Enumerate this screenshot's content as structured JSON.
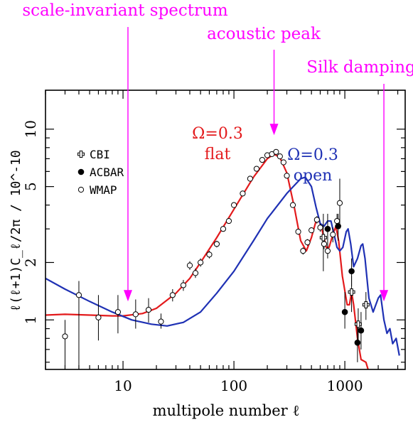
{
  "chart_data": {
    "type": "scatter",
    "title": "",
    "xlabel": "multipole number ℓ",
    "ylabel": "ℓ(ℓ+1)C_ℓ/2π  /  10^-10",
    "x_scale": "log",
    "y_scale": "log",
    "xlim": [
      2,
      3500
    ],
    "ylim": [
      0.55,
      16
    ],
    "x_ticks": [
      10,
      100,
      1000
    ],
    "x_tick_labels": [
      "10",
      "100",
      "1000"
    ],
    "y_ticks": [
      1,
      2,
      5,
      10
    ],
    "y_tick_labels": [
      "1",
      "2",
      "5",
      "10"
    ],
    "legend_position": "top-left",
    "legend": [
      {
        "marker": "cross",
        "label": "CBI"
      },
      {
        "marker": "filled-circle",
        "label": "ACBAR"
      },
      {
        "marker": "open-circle",
        "label": "WMAP"
      }
    ],
    "series": [
      {
        "name": "flat",
        "kind": "line",
        "color": "#e31a1c",
        "points": [
          [
            2,
            1.06
          ],
          [
            3,
            1.07
          ],
          [
            5,
            1.06
          ],
          [
            8,
            1.05
          ],
          [
            10,
            1.05
          ],
          [
            15,
            1.08
          ],
          [
            20,
            1.15
          ],
          [
            30,
            1.38
          ],
          [
            40,
            1.65
          ],
          [
            50,
            2.0
          ],
          [
            70,
            2.7
          ],
          [
            100,
            3.8
          ],
          [
            150,
            5.6
          ],
          [
            200,
            7.0
          ],
          [
            230,
            7.4
          ],
          [
            260,
            7.1
          ],
          [
            300,
            5.9
          ],
          [
            350,
            3.9
          ],
          [
            400,
            2.6
          ],
          [
            450,
            2.3
          ],
          [
            500,
            2.7
          ],
          [
            550,
            3.3
          ],
          [
            580,
            3.4
          ],
          [
            620,
            3.0
          ],
          [
            680,
            2.4
          ],
          [
            720,
            2.4
          ],
          [
            780,
            2.8
          ],
          [
            830,
            3.1
          ],
          [
            880,
            2.6
          ],
          [
            950,
            1.7
          ],
          [
            1050,
            1.2
          ],
          [
            1100,
            1.2
          ],
          [
            1150,
            1.4
          ],
          [
            1200,
            1.2
          ],
          [
            1300,
            0.8
          ],
          [
            1400,
            0.62
          ],
          [
            1550,
            0.6
          ],
          [
            1700,
            0.5
          ]
        ]
      },
      {
        "name": "open",
        "kind": "line",
        "color": "#1f31b4",
        "points": [
          [
            2,
            1.65
          ],
          [
            3,
            1.45
          ],
          [
            5,
            1.25
          ],
          [
            8,
            1.1
          ],
          [
            12,
            1.0
          ],
          [
            18,
            0.95
          ],
          [
            25,
            0.93
          ],
          [
            35,
            0.97
          ],
          [
            50,
            1.1
          ],
          [
            70,
            1.38
          ],
          [
            100,
            1.8
          ],
          [
            150,
            2.6
          ],
          [
            200,
            3.4
          ],
          [
            300,
            4.6
          ],
          [
            400,
            5.5
          ],
          [
            440,
            5.6
          ],
          [
            500,
            5.0
          ],
          [
            550,
            3.9
          ],
          [
            600,
            3.2
          ],
          [
            650,
            3.1
          ],
          [
            700,
            3.3
          ],
          [
            750,
            3.3
          ],
          [
            800,
            2.8
          ],
          [
            850,
            2.4
          ],
          [
            900,
            2.3
          ],
          [
            960,
            2.4
          ],
          [
            1030,
            2.9
          ],
          [
            1070,
            3.0
          ],
          [
            1130,
            2.5
          ],
          [
            1200,
            1.9
          ],
          [
            1300,
            2.1
          ],
          [
            1400,
            2.45
          ],
          [
            1450,
            2.5
          ],
          [
            1520,
            2.1
          ],
          [
            1650,
            1.3
          ],
          [
            1800,
            1.1
          ],
          [
            2000,
            1.3
          ],
          [
            2100,
            1.35
          ],
          [
            2250,
            1.0
          ],
          [
            2400,
            0.85
          ],
          [
            2550,
            0.9
          ],
          [
            2700,
            0.75
          ],
          [
            2900,
            0.8
          ],
          [
            3100,
            0.65
          ]
        ]
      },
      {
        "name": "WMAP",
        "kind": "points",
        "marker": "open-circle",
        "points": [
          [
            3,
            0.82,
            0.35,
            1.0
          ],
          [
            4,
            1.35,
            0.5,
            1.6
          ],
          [
            6,
            1.03,
            0.78,
            1.35
          ],
          [
            9,
            1.1,
            0.85,
            1.35
          ],
          [
            13,
            1.07,
            0.9,
            1.28
          ],
          [
            17,
            1.13,
            0.97,
            1.3
          ],
          [
            22,
            0.98,
            0.9,
            1.08
          ],
          [
            28,
            1.35,
            1.25,
            1.45
          ],
          [
            35,
            1.52,
            1.42,
            1.62
          ],
          [
            40,
            1.93,
            1.83,
            2.03
          ],
          [
            45,
            1.76,
            1.66,
            1.86
          ],
          [
            50,
            2.0,
            1.9,
            2.1
          ],
          [
            60,
            2.2,
            2.1,
            2.3
          ],
          [
            70,
            2.5,
            2.4,
            2.6
          ],
          [
            80,
            3.0,
            2.9,
            3.1
          ],
          [
            90,
            3.3,
            3.2,
            3.4
          ],
          [
            100,
            4.0,
            3.9,
            4.1
          ],
          [
            120,
            4.6,
            4.5,
            4.7
          ],
          [
            140,
            5.5,
            5.4,
            5.6
          ],
          [
            160,
            6.2,
            6.1,
            6.3
          ],
          [
            180,
            6.9,
            6.8,
            7.0
          ],
          [
            200,
            7.3,
            7.2,
            7.4
          ],
          [
            220,
            7.4,
            7.3,
            7.5
          ],
          [
            240,
            7.6,
            7.5,
            7.7
          ],
          [
            260,
            7.2,
            7.1,
            7.3
          ],
          [
            280,
            6.7,
            6.6,
            6.8
          ],
          [
            300,
            5.7,
            5.6,
            5.8
          ],
          [
            340,
            4.0,
            3.9,
            4.1
          ],
          [
            380,
            2.9,
            2.8,
            3.0
          ],
          [
            420,
            2.3,
            2.2,
            2.4
          ],
          [
            460,
            2.55,
            2.45,
            2.65
          ],
          [
            500,
            2.95,
            2.85,
            3.05
          ],
          [
            560,
            3.35,
            3.2,
            3.5
          ],
          [
            600,
            3.05,
            2.9,
            3.2
          ],
          [
            650,
            2.5,
            2.35,
            2.65
          ],
          [
            700,
            2.3,
            2.1,
            2.5
          ],
          [
            780,
            2.8,
            2.55,
            3.05
          ],
          [
            850,
            3.3,
            3.0,
            3.6
          ],
          [
            900,
            4.1,
            3.0,
            5.5
          ]
        ]
      },
      {
        "name": "ACBAR",
        "kind": "points",
        "marker": "filled-circle",
        "points": [
          [
            700,
            3.0,
            2.4,
            3.6
          ],
          [
            870,
            3.1,
            2.6,
            3.6
          ],
          [
            1000,
            1.1,
            0.9,
            1.4
          ],
          [
            1150,
            1.8,
            1.5,
            2.1
          ],
          [
            1300,
            0.76,
            0.6,
            0.95
          ],
          [
            1400,
            0.88,
            0.7,
            1.1
          ]
        ]
      },
      {
        "name": "CBI",
        "kind": "points",
        "marker": "cross",
        "points": [
          [
            640,
            2.7,
            1.8,
            3.6
          ],
          [
            1150,
            1.4,
            1.1,
            1.7
          ],
          [
            1320,
            0.95,
            0.75,
            1.15
          ],
          [
            1550,
            1.2,
            1.0,
            1.4
          ]
        ]
      }
    ],
    "annotations": [
      {
        "text": "scale-invariant spectrum",
        "arrow_at": [
          12.5,
          1.25
        ]
      },
      {
        "text": "acoustic peak",
        "arrow_at": [
          230,
          9.3
        ]
      },
      {
        "text": "Silk damping",
        "arrow_at": [
          2250,
          1.25
        ]
      },
      {
        "text_lines": [
          "Ω=0.3",
          "flat"
        ],
        "color": "#e31a1c"
      },
      {
        "text_lines": [
          "Ω=0.3",
          "open"
        ],
        "color": "#1f31b4"
      }
    ],
    "annotation_color": "#ff00ff"
  }
}
